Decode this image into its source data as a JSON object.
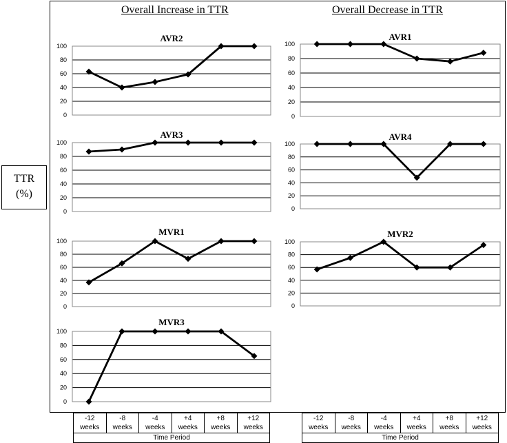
{
  "ylabel_line1": "TTR",
  "ylabel_line2": "(%)",
  "headings": {
    "left": "Overall Increase in TTR",
    "right": "Overall Decrease in TTR"
  },
  "x_categories_line1": [
    "-12",
    "-8",
    "-4",
    "+4",
    "+8",
    "+12"
  ],
  "x_categories_line2": [
    "weeks",
    "weeks",
    "weeks",
    "weeks",
    "weeks",
    "weeks"
  ],
  "x_axis_title": "Time Period",
  "colors": {
    "line": "#000000",
    "grid": "#000000",
    "plot_border": "#888888"
  },
  "chart_data": [
    {
      "type": "line",
      "title": "AVR2",
      "categories": [
        "-12 weeks",
        "-8 weeks",
        "-4 weeks",
        "+4 weeks",
        "+8 weeks",
        "+12 weeks"
      ],
      "values": [
        63,
        40,
        48,
        59,
        100,
        100
      ],
      "ylim": [
        0,
        100
      ],
      "yticks": [
        0,
        20,
        40,
        60,
        80,
        100
      ],
      "grid": true,
      "group": "Overall Increase in TTR"
    },
    {
      "type": "line",
      "title": "AVR1",
      "categories": [
        "-12 weeks",
        "-8 weeks",
        "-4 weeks",
        "+4 weeks",
        "+8 weeks",
        "+12 weeks"
      ],
      "values": [
        100,
        100,
        100,
        80,
        76,
        88
      ],
      "ylim": [
        0,
        100
      ],
      "yticks": [
        0,
        20,
        40,
        60,
        80,
        100
      ],
      "grid": true,
      "group": "Overall Decrease in TTR"
    },
    {
      "type": "line",
      "title": "AVR3",
      "categories": [
        "-12 weeks",
        "-8 weeks",
        "-4 weeks",
        "+4 weeks",
        "+8 weeks",
        "+12 weeks"
      ],
      "values": [
        87,
        90,
        100,
        100,
        100,
        100
      ],
      "ylim": [
        0,
        100
      ],
      "yticks": [
        0,
        20,
        40,
        60,
        80,
        100
      ],
      "grid": true,
      "group": "Overall Increase in TTR"
    },
    {
      "type": "line",
      "title": "AVR4",
      "categories": [
        "-12 weeks",
        "-8 weeks",
        "-4 weeks",
        "+4 weeks",
        "+8 weeks",
        "+12 weeks"
      ],
      "values": [
        100,
        100,
        100,
        48,
        100,
        100
      ],
      "ylim": [
        0,
        100
      ],
      "yticks": [
        0,
        20,
        40,
        60,
        80,
        100
      ],
      "grid": true,
      "group": "Overall Decrease in TTR"
    },
    {
      "type": "line",
      "title": "MVR1",
      "categories": [
        "-12 weeks",
        "-8 weeks",
        "-4 weeks",
        "+4 weeks",
        "+8 weeks",
        "+12 weeks"
      ],
      "values": [
        37,
        66,
        100,
        73,
        100,
        100
      ],
      "ylim": [
        0,
        100
      ],
      "yticks": [
        0,
        20,
        40,
        60,
        80,
        100
      ],
      "grid": true,
      "group": "Overall Increase in TTR"
    },
    {
      "type": "line",
      "title": "MVR2",
      "categories": [
        "-12 weeks",
        "-8 weeks",
        "-4 weeks",
        "+4 weeks",
        "+8 weeks",
        "+12 weeks"
      ],
      "values": [
        57,
        75,
        100,
        60,
        60,
        95
      ],
      "ylim": [
        0,
        100
      ],
      "yticks": [
        0,
        20,
        40,
        60,
        80,
        100
      ],
      "grid": true,
      "group": "Overall Decrease in TTR"
    },
    {
      "type": "line",
      "title": "MVR3",
      "categories": [
        "-12 weeks",
        "-8 weeks",
        "-4 weeks",
        "+4 weeks",
        "+8 weeks",
        "+12 weeks"
      ],
      "values": [
        0,
        100,
        100,
        100,
        100,
        65
      ],
      "ylim": [
        0,
        100
      ],
      "yticks": [
        0,
        20,
        40,
        60,
        80,
        100
      ],
      "grid": true,
      "group": "Overall Increase in TTR"
    }
  ]
}
